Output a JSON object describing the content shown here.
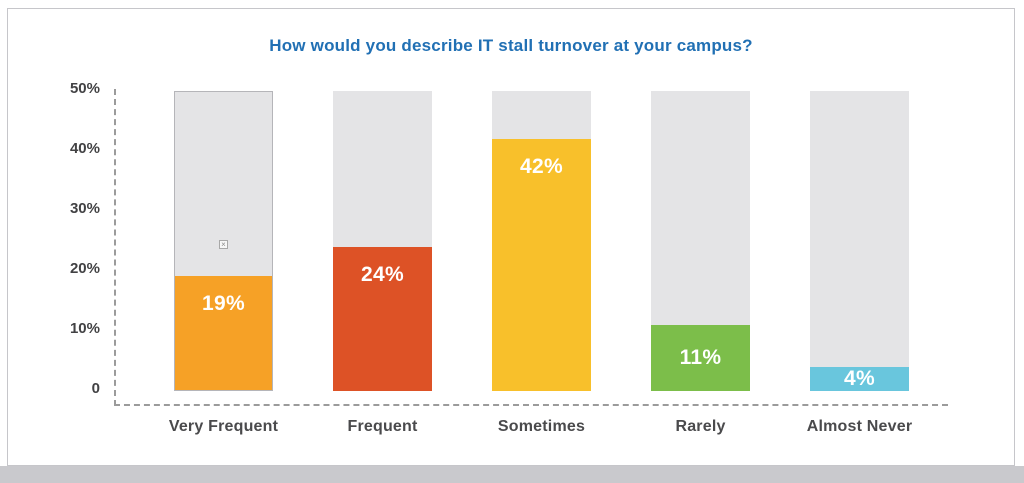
{
  "page": {
    "title": "How would you describe IT stall turnover at your campus?"
  },
  "chart_data": {
    "type": "bar",
    "title": "How would you describe IT stall turnover at your campus?",
    "title_color": "#2170B4",
    "categories": [
      "Very Frequent",
      "Frequent",
      "Sometimes",
      "Rarely",
      "Almost Never"
    ],
    "values": [
      19,
      24,
      42,
      11,
      4
    ],
    "value_labels": [
      "19%",
      "24%",
      "42%",
      "11%",
      "4%"
    ],
    "bar_colors": [
      "#F6A126",
      "#DD5226",
      "#F8C02B",
      "#7CBE4A",
      "#69C6DD"
    ],
    "track_color": "#E4E4E6",
    "track_max": 50,
    "xlabel": "",
    "ylabel": "",
    "ylim": [
      0,
      50
    ],
    "yticks": [
      "50%",
      "40%",
      "30%",
      "20%",
      "10%",
      "0"
    ],
    "ytick_values": [
      50,
      40,
      30,
      20,
      10,
      0
    ],
    "grid": false,
    "legend": "none",
    "axis_style": "dashed"
  }
}
